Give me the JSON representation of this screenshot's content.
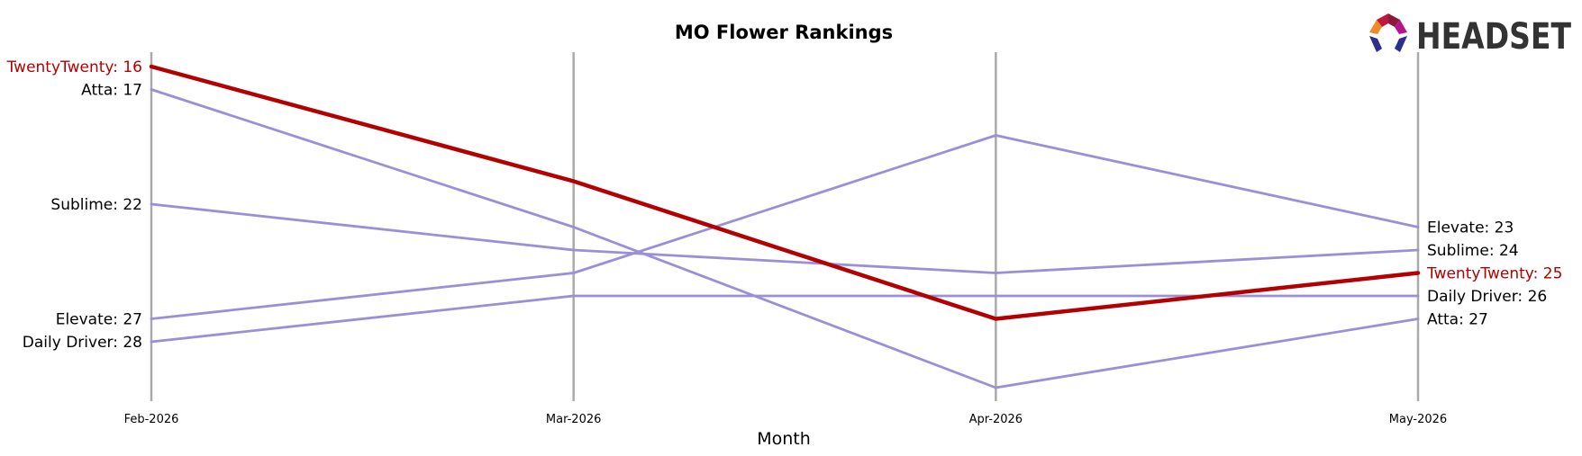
{
  "logo": {
    "text": "HEADSET",
    "text_color": "#333333"
  },
  "chart_data": {
    "type": "line",
    "title": "MO Flower Rankings",
    "xlabel": "Month",
    "ylabel": "",
    "x": [
      "Feb-2026",
      "Mar-2026",
      "Apr-2026",
      "May-2026"
    ],
    "ylim": [
      31,
      15.3
    ],
    "y_inverted": true,
    "grid": "vertical lines at each month",
    "legend": "none (series labels at line ends)",
    "highlight_color": "#b30000",
    "default_color": "#9b8fd8",
    "series": [
      {
        "name": "TwentyTwenty",
        "values": [
          16,
          21,
          27,
          25
        ],
        "highlight": true
      },
      {
        "name": "Atta",
        "values": [
          17,
          23,
          30,
          27
        ]
      },
      {
        "name": "Sublime",
        "values": [
          22,
          24,
          25,
          24
        ]
      },
      {
        "name": "Elevate",
        "values": [
          27,
          25,
          19,
          23
        ]
      },
      {
        "name": "Daily Driver",
        "values": [
          28,
          26,
          26,
          26
        ]
      }
    ]
  }
}
